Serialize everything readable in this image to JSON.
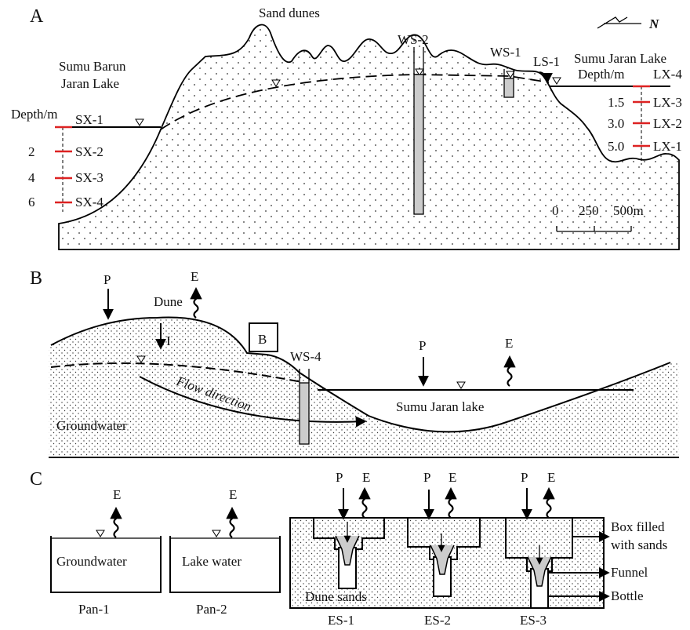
{
  "panel_a": {
    "label": "A",
    "sand_dunes": "Sand dunes",
    "north": "N",
    "west_lake": [
      "Sumu Barun",
      "Jaran Lake"
    ],
    "west_depth_title": "Depth/m",
    "west_sites": [
      {
        "name": "SX-1"
      },
      {
        "depth": "2",
        "name": "SX-2"
      },
      {
        "depth": "4",
        "name": "SX-3"
      },
      {
        "depth": "6",
        "name": "SX-4"
      }
    ],
    "wells": [
      "WS-2",
      "WS-1",
      "LS-1"
    ],
    "east_lake": "Sumu Jaran Lake",
    "east_depth_title": "Depth/m",
    "east_sites": [
      {
        "name": "LX-4"
      },
      {
        "depth": "1.5",
        "name": "LX-3"
      },
      {
        "depth": "3.0",
        "name": "LX-2"
      },
      {
        "depth": "5.0",
        "name": "LX-1"
      }
    ],
    "scale": [
      "0",
      "250",
      "500m"
    ]
  },
  "panel_b": {
    "label": "B",
    "precip": [
      "P",
      "P"
    ],
    "evap": [
      "E",
      "E"
    ],
    "dune": "Dune",
    "infiltration": "I",
    "box": "B",
    "well": "WS-4",
    "flow": "Flow direction",
    "lake": "Sumu Jaran lake",
    "groundwater": "Groundwater"
  },
  "panel_c": {
    "label": "C",
    "pans": [
      {
        "name": "Pan-1",
        "content": "Groundwater",
        "evap": "E"
      },
      {
        "name": "Pan-2",
        "content": "Lake water",
        "evap": "E"
      }
    ],
    "dune_sands": "Dune sands",
    "boxes": [
      {
        "name": "ES-1",
        "precip": "P",
        "evap": "E"
      },
      {
        "name": "ES-2",
        "precip": "P",
        "evap": "E"
      },
      {
        "name": "ES-3",
        "precip": "P",
        "evap": "E"
      }
    ],
    "callouts": [
      "Box filled",
      "with sands",
      "Funnel",
      "Bottle"
    ]
  }
}
